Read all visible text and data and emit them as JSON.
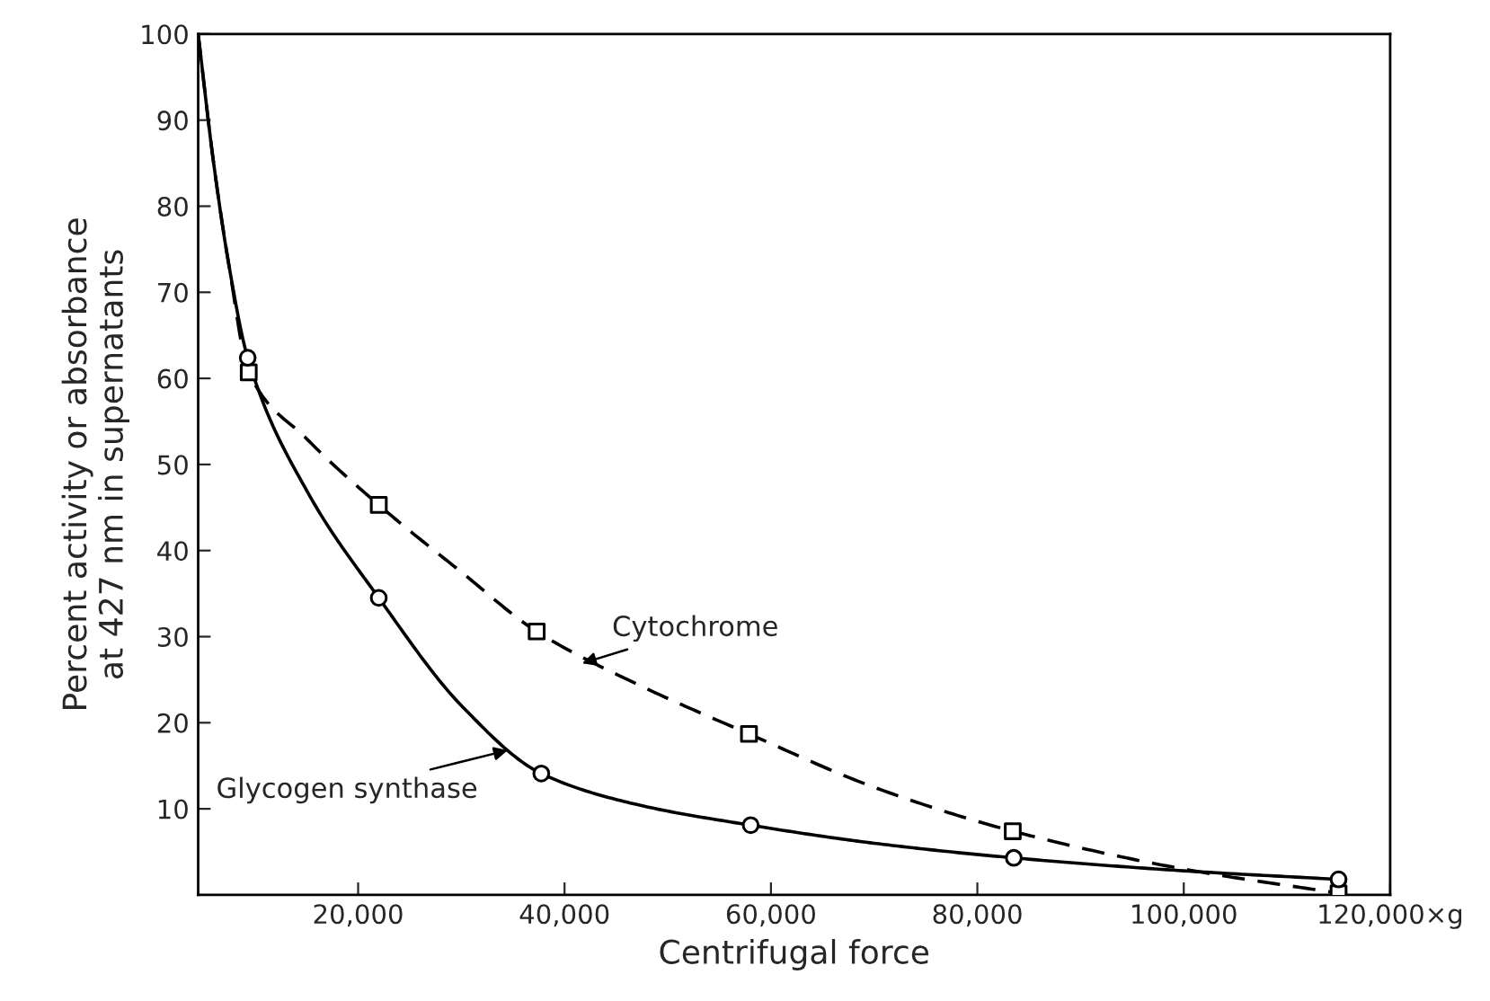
{
  "chart_data": {
    "type": "line",
    "xlabel": "Centrifugal force",
    "ylabel": "Percent activity or absorbance\nat 427 nm in supernatants",
    "xlim": [
      4500,
      120000
    ],
    "ylim": [
      0,
      100
    ],
    "xticks": [
      {
        "value": 20000,
        "label": "20,000"
      },
      {
        "value": 40000,
        "label": "40,000"
      },
      {
        "value": 60000,
        "label": "60,000"
      },
      {
        "value": 80000,
        "label": "80,000"
      },
      {
        "value": 100000,
        "label": "100,000"
      },
      {
        "value": 120000,
        "label": "120,000×g"
      }
    ],
    "yticks": [
      10,
      20,
      30,
      40,
      50,
      60,
      70,
      80,
      90,
      100
    ],
    "grid": false,
    "legend": false,
    "series": [
      {
        "type": "line",
        "color": "#000000",
        "line_style": "solid",
        "marker": "none",
        "x": [
          4500,
          6000,
          7500,
          9300,
          15000,
          22000,
          30000,
          37750,
          47000,
          58040,
          70000,
          83530,
          100000,
          115000
        ],
        "values": [
          100,
          85,
          73,
          62.4,
          47,
          34.5,
          22,
          14.1,
          10.5,
          8.1,
          6,
          4.3,
          2.8,
          1.8
        ]
      },
      {
        "type": "line",
        "color": "#000000",
        "line_style": "dashed",
        "marker": "none",
        "x": [
          4500,
          6000,
          7500,
          9400,
          15000,
          22000,
          30000,
          37300,
          47000,
          57870,
          70000,
          83430,
          100000,
          115000
        ],
        "values": [
          100,
          85,
          73,
          60.7,
          53,
          45.3,
          37.5,
          30.6,
          24.5,
          18.7,
          12.5,
          7.4,
          3,
          0.2
        ]
      },
      {
        "type": "scatter",
        "color": "#000000",
        "marker": "square",
        "x": [
          9400,
          22000,
          37300,
          57870,
          83430,
          115000
        ],
        "values": [
          60.7,
          45.3,
          30.6,
          18.7,
          7.4,
          0.2
        ]
      },
      {
        "type": "scatter",
        "color": "#000000",
        "marker": "circle",
        "x": [
          9300,
          22000,
          37750,
          58040,
          83530,
          115000
        ],
        "values": [
          62.4,
          34.5,
          14.1,
          8.1,
          4.3,
          1.8
        ]
      }
    ],
    "annotations": [
      {
        "text": "Glycogen synthase",
        "x": 34500,
        "y": 16.8
      },
      {
        "text": "Cytochrome",
        "x": 41700,
        "y": 26.9
      }
    ]
  }
}
